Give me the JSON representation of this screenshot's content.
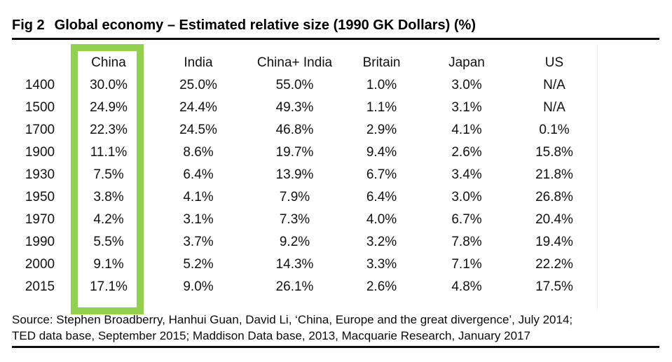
{
  "header": {
    "fig_label": "Fig 2",
    "title": "Global economy – Estimated relative size (1990 GK Dollars) (%)"
  },
  "table": {
    "columns": [
      "",
      "China",
      "India",
      "China+ India",
      "Britain",
      "Japan",
      "US"
    ],
    "rows": [
      [
        "1400",
        "30.0%",
        "25.0%",
        "55.0%",
        "1.0%",
        "3.0%",
        "N/A"
      ],
      [
        "1500",
        "24.9%",
        "24.4%",
        "49.3%",
        "1.1%",
        "3.1%",
        "N/A"
      ],
      [
        "1700",
        "22.3%",
        "24.5%",
        "46.8%",
        "2.9%",
        "4.1%",
        "0.1%"
      ],
      [
        "1900",
        "11.1%",
        "8.6%",
        "19.7%",
        "9.4%",
        "2.6%",
        "15.8%"
      ],
      [
        "1930",
        "7.5%",
        "6.4%",
        "13.9%",
        "6.7%",
        "3.4%",
        "21.8%"
      ],
      [
        "1950",
        "3.8%",
        "4.1%",
        "7.9%",
        "6.4%",
        "3.0%",
        "26.8%"
      ],
      [
        "1970",
        "4.2%",
        "3.1%",
        "7.3%",
        "4.0%",
        "6.7%",
        "20.4%"
      ],
      [
        "1990",
        "5.5%",
        "3.7%",
        "9.2%",
        "3.2%",
        "7.8%",
        "19.4%"
      ],
      [
        "2000",
        "9.1%",
        "5.2%",
        "14.3%",
        "3.3%",
        "7.1%",
        "22.2%"
      ],
      [
        "2015",
        "17.1%",
        "9.0%",
        "26.1%",
        "2.6%",
        "4.8%",
        "17.5%"
      ]
    ]
  },
  "highlight": {
    "column": "China",
    "color": "#92d050"
  },
  "footer": {
    "source_line1": "Source: Stephen Broadberry, Hanhui Guan, David Li, ‘China, Europe and the great divergence’, July 2014;",
    "source_line2": "TED data base, September 2015; Maddison Data base, 2013, Macquarie Research, January 2017"
  },
  "chart_data": {
    "type": "table",
    "title": "Fig 2 Global economy – Estimated relative size (1990 GK Dollars) (%)",
    "categories": [
      1400,
      1500,
      1700,
      1900,
      1930,
      1950,
      1970,
      1990,
      2000,
      2015
    ],
    "series": [
      {
        "name": "China",
        "values": [
          30.0,
          24.9,
          22.3,
          11.1,
          7.5,
          3.8,
          4.2,
          5.5,
          9.1,
          17.1
        ]
      },
      {
        "name": "India",
        "values": [
          25.0,
          24.4,
          24.5,
          8.6,
          6.4,
          4.1,
          3.1,
          3.7,
          5.2,
          9.0
        ]
      },
      {
        "name": "China+ India",
        "values": [
          55.0,
          49.3,
          46.8,
          19.7,
          13.9,
          7.9,
          7.3,
          9.2,
          14.3,
          26.1
        ]
      },
      {
        "name": "Britain",
        "values": [
          1.0,
          1.1,
          2.9,
          9.4,
          6.7,
          6.4,
          4.0,
          3.2,
          3.3,
          2.6
        ]
      },
      {
        "name": "Japan",
        "values": [
          3.0,
          3.1,
          4.1,
          2.6,
          3.4,
          3.0,
          6.7,
          7.8,
          7.1,
          4.8
        ]
      },
      {
        "name": "US",
        "values": [
          null,
          null,
          0.1,
          15.8,
          21.8,
          26.8,
          20.4,
          19.4,
          22.2,
          17.5
        ]
      }
    ],
    "na_label": "N/A",
    "values_are_percent": true,
    "highlighted_series": "China",
    "highlight_color": "#92d050"
  }
}
